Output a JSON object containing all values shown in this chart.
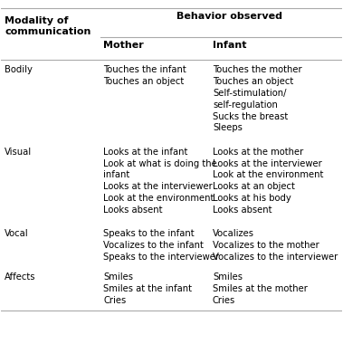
{
  "title_col1": "Modality of\ncommunication",
  "title_behavior": "Behavior observed",
  "subtitle_col2": "Mother",
  "subtitle_col3": "Infant",
  "rows": [
    {
      "modality": "Bodily",
      "mother": "Touches the infant\nTouches an object",
      "infant": "Touches the mother\nTouches an object\nSelf-stimulation/\nself-regulation\nSucks the breast\nSleeps"
    },
    {
      "modality": "Visual",
      "mother": "Looks at the infant\nLook at what is doing the\ninfant\nLooks at the interviewer\nLook at the environment\nLooks absent",
      "infant": "Looks at the mother\nLooks at the interviewer\nLook at the environment\nLooks at an object\nLooks at his body\nLooks absent"
    },
    {
      "modality": "Vocal",
      "mother": "Speaks to the infant\nVocalizes to the infant\nSpeaks to the interviewer",
      "infant": "Vocalizes\nVocalizes to the mother\nVocalizes to the interviewer"
    },
    {
      "modality": "Affects",
      "mother": "Smiles\nSmiles at the infant\nCries",
      "infant": "Smiles\nSmiles at the mother\nCries"
    }
  ],
  "bg_color": "#ffffff",
  "text_color": "#000000",
  "line_color": "#aaaaaa",
  "font_size": 7.2,
  "header_font_size": 8.0
}
